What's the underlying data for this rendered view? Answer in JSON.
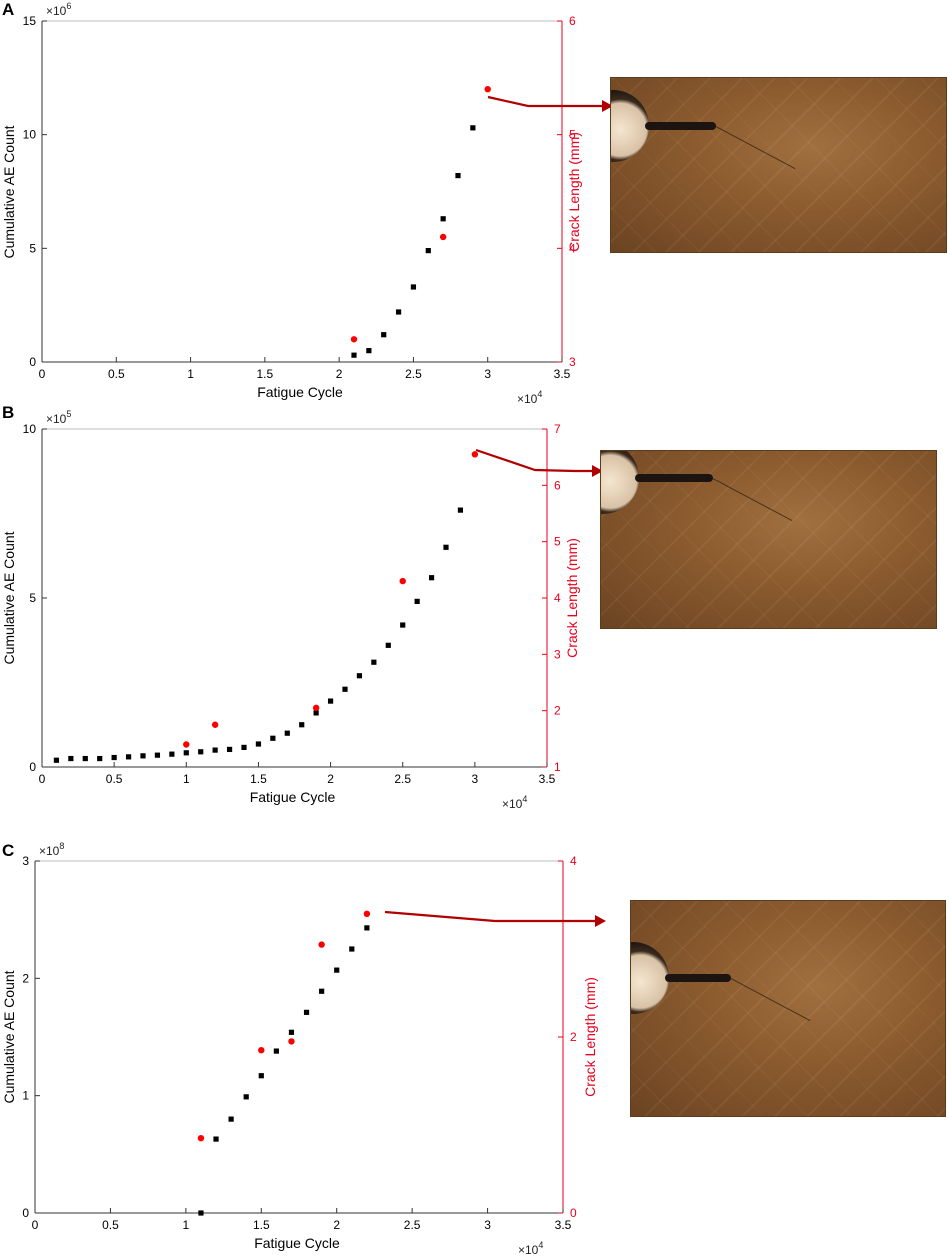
{
  "colors": {
    "ae_marker": "#000000",
    "crack_marker": "#ff0000",
    "right_axis": "#e8001c",
    "arrow": "#b20000",
    "photo_base": "#8a5a2e"
  },
  "chart_data": [
    {
      "panel_label": "A",
      "type": "scatter",
      "xlabel": "Fatigue Cycle",
      "x_multiplier_label": "×10",
      "x_multiplier_exp": "4",
      "xlim": [
        0,
        3.5
      ],
      "xticks": [
        "0",
        "0.5",
        "1",
        "1.5",
        "2",
        "2.5",
        "3",
        "3.5"
      ],
      "y_left": {
        "label": "Cumulative AE Count",
        "multiplier_label": "×10",
        "multiplier_exp": "6",
        "lim": [
          0,
          15
        ],
        "ticks": [
          "0",
          "5",
          "10",
          "15"
        ]
      },
      "y_right": {
        "label": "Crack Length (mm)",
        "lim": [
          3,
          6
        ],
        "ticks": [
          "3",
          "4",
          "5",
          "6"
        ]
      },
      "series": [
        {
          "axis": "left",
          "marker": "square",
          "x": [
            2.1,
            2.2,
            2.3,
            2.4,
            2.5,
            2.6,
            2.7,
            2.8,
            2.9
          ],
          "y": [
            0.3,
            0.5,
            1.2,
            2.2,
            3.3,
            4.9,
            6.3,
            8.2,
            10.3
          ]
        },
        {
          "axis": "right",
          "marker": "circle",
          "x": [
            2.1,
            2.7,
            3.0
          ],
          "y": [
            3.2,
            4.1,
            5.4
          ]
        }
      ]
    },
    {
      "panel_label": "B",
      "type": "scatter",
      "xlabel": "Fatigue Cycle",
      "x_multiplier_label": "×10",
      "x_multiplier_exp": "4",
      "xlim": [
        0,
        3.5
      ],
      "xticks": [
        "0",
        "0.5",
        "1",
        "1.5",
        "2",
        "2.5",
        "3",
        "3.5"
      ],
      "y_left": {
        "label": "Cumulative AE Count",
        "multiplier_label": "×10",
        "multiplier_exp": "5",
        "lim": [
          0,
          10
        ],
        "ticks": [
          "0",
          "5",
          "10"
        ]
      },
      "y_right": {
        "label": "Crack Length (mm)",
        "lim": [
          1,
          7
        ],
        "ticks": [
          "1",
          "2",
          "3",
          "4",
          "5",
          "6",
          "7"
        ]
      },
      "series": [
        {
          "axis": "left",
          "marker": "square",
          "x": [
            0.1,
            0.2,
            0.3,
            0.4,
            0.5,
            0.6,
            0.7,
            0.8,
            0.9,
            1.0,
            1.1,
            1.2,
            1.3,
            1.4,
            1.5,
            1.6,
            1.7,
            1.8,
            1.9,
            2.0,
            2.1,
            2.2,
            2.3,
            2.4,
            2.5,
            2.6,
            2.7,
            2.8,
            2.9
          ],
          "y": [
            0.2,
            0.25,
            0.25,
            0.25,
            0.28,
            0.3,
            0.33,
            0.35,
            0.38,
            0.42,
            0.45,
            0.5,
            0.52,
            0.58,
            0.68,
            0.85,
            1.0,
            1.25,
            1.6,
            1.95,
            2.3,
            2.7,
            3.1,
            3.6,
            4.2,
            4.9,
            5.6,
            6.5,
            7.6
          ]
        },
        {
          "axis": "right",
          "marker": "circle",
          "x": [
            1.0,
            1.2,
            1.9,
            2.5,
            3.0
          ],
          "y": [
            1.4,
            1.75,
            2.05,
            4.3,
            6.55
          ]
        }
      ]
    },
    {
      "panel_label": "C",
      "type": "scatter",
      "xlabel": "Fatigue Cycle",
      "x_multiplier_label": "×10",
      "x_multiplier_exp": "4",
      "xlim": [
        0,
        3.5
      ],
      "xticks": [
        "0",
        "0.5",
        "1",
        "1.5",
        "2",
        "2.5",
        "3",
        "3.5"
      ],
      "y_left": {
        "label": "Cumulative AE Count",
        "multiplier_label": "×10",
        "multiplier_exp": "8",
        "lim": [
          0,
          3
        ],
        "ticks": [
          "0",
          "1",
          "2",
          "3"
        ]
      },
      "y_right": {
        "label": "Crack Length (mm)",
        "lim": [
          0,
          4
        ],
        "ticks": [
          "0",
          "2",
          "4"
        ]
      },
      "series": [
        {
          "axis": "left",
          "marker": "square",
          "x": [
            1.1,
            1.2,
            1.3,
            1.4,
            1.5,
            1.6,
            1.7,
            1.8,
            1.9,
            2.0,
            2.1,
            2.2
          ],
          "y": [
            0.0,
            0.63,
            0.8,
            0.99,
            1.17,
            1.38,
            1.54,
            1.71,
            1.89,
            2.07,
            2.25,
            2.43
          ]
        },
        {
          "axis": "right",
          "marker": "circle",
          "x": [
            1.1,
            1.5,
            1.7,
            1.9,
            2.2
          ],
          "y": [
            0.85,
            1.85,
            1.95,
            3.05,
            3.4
          ]
        }
      ]
    }
  ]
}
